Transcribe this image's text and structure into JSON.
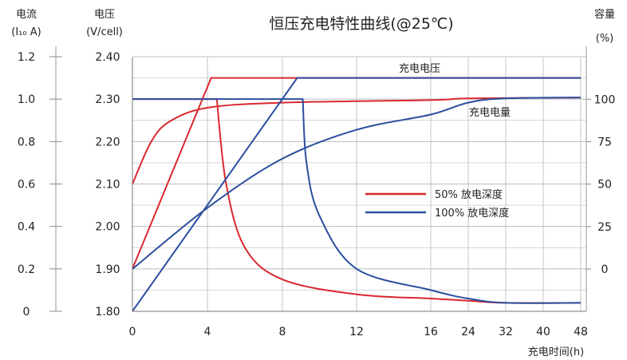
{
  "chart_data": {
    "type": "line",
    "title": "恒压充电特性曲线(@25℃)",
    "left_axis": {
      "title_line1": "电流",
      "title_line2": "(I₁₀ A)",
      "ticks": [
        "0",
        "0.2",
        "0.4",
        "0.6",
        "0.8",
        "1.0",
        "1.2"
      ]
    },
    "voltage_axis": {
      "title_line1": "电压",
      "title_line2": "(V/cell)",
      "ticks": [
        "1.80",
        "1.90",
        "2.00",
        "2.10",
        "2.20",
        "2.30",
        "2.40"
      ],
      "ylim": [
        1.8,
        2.4
      ]
    },
    "right_axis": {
      "title_line1": "容量",
      "title_line2": "(%)",
      "ticks": [
        "0",
        "25",
        "50",
        "75",
        "100"
      ]
    },
    "x_axis": {
      "label": "充电时间(h)",
      "ticks": [
        "0",
        "4",
        "8",
        "12",
        "16",
        "24",
        "32",
        "40",
        "48"
      ]
    },
    "grid": true,
    "legend": {
      "position": "center-right",
      "entries": [
        {
          "label": "50% 放电深度",
          "color": "#d9282f"
        },
        {
          "label": "100% 放电深度",
          "color": "#2b4f9e"
        }
      ]
    },
    "annotations": {
      "voltage_curve": "充电电压",
      "capacity_curve": "充电电量"
    },
    "series": [
      {
        "group": "50% 放电深度",
        "color": "#d9282f",
        "kind": "voltage",
        "unit": "V/cell",
        "points": [
          [
            0,
            1.9
          ],
          [
            4.2,
            2.35
          ],
          [
            48,
            2.35
          ]
        ]
      },
      {
        "group": "50% 放电深度",
        "color": "#d9282f",
        "kind": "current",
        "unit": "I10 A",
        "points": [
          [
            0,
            1.0
          ],
          [
            4.5,
            1.0
          ],
          [
            5,
            0.6
          ],
          [
            6,
            0.3
          ],
          [
            8,
            0.15
          ],
          [
            12,
            0.08
          ],
          [
            16,
            0.06
          ],
          [
            24,
            0.05
          ],
          [
            32,
            0.04
          ],
          [
            48,
            0.04
          ]
        ]
      },
      {
        "group": "50% 放电深度",
        "color": "#d9282f",
        "kind": "capacity",
        "unit": "%",
        "points": [
          [
            0,
            50
          ],
          [
            1,
            75
          ],
          [
            2,
            87
          ],
          [
            4,
            95
          ],
          [
            8,
            98
          ],
          [
            16,
            99.5
          ],
          [
            24,
            100.5
          ],
          [
            48,
            101
          ]
        ]
      },
      {
        "group": "100% 放电深度",
        "color": "#2b4f9e",
        "kind": "voltage",
        "unit": "V/cell",
        "points": [
          [
            0,
            1.8
          ],
          [
            8.8,
            2.35
          ],
          [
            48,
            2.35
          ]
        ]
      },
      {
        "group": "100% 放电深度",
        "color": "#2b4f9e",
        "kind": "current",
        "unit": "I10 A",
        "points": [
          [
            0,
            1.0
          ],
          [
            9.1,
            1.0
          ],
          [
            9.3,
            0.7
          ],
          [
            10,
            0.45
          ],
          [
            12,
            0.2
          ],
          [
            16,
            0.1
          ],
          [
            24,
            0.06
          ],
          [
            32,
            0.04
          ],
          [
            48,
            0.04
          ]
        ]
      },
      {
        "group": "100% 放电深度",
        "color": "#2b4f9e",
        "kind": "capacity",
        "unit": "%",
        "points": [
          [
            0,
            0
          ],
          [
            4,
            36
          ],
          [
            8,
            65
          ],
          [
            12,
            82
          ],
          [
            16,
            91
          ],
          [
            24,
            98
          ],
          [
            32,
            100.5
          ],
          [
            48,
            101
          ]
        ]
      }
    ]
  }
}
